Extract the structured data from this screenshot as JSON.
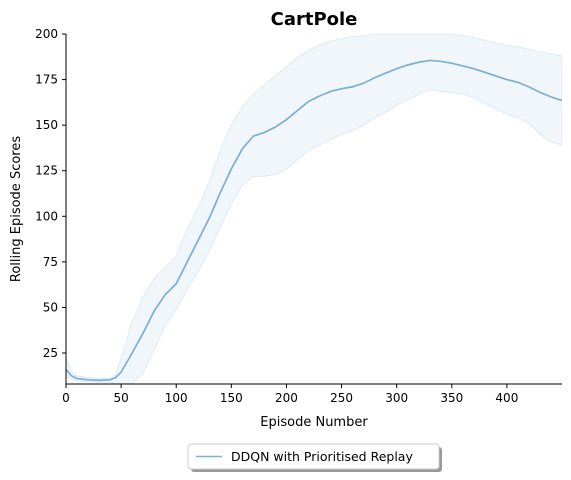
{
  "chart_data": {
    "type": "line",
    "title": "CartPole",
    "xlabel": "Episode Number",
    "ylabel": "Rolling Episode Scores",
    "xlim": [
      0,
      450
    ],
    "ylim": [
      8,
      200
    ],
    "xticks": [
      0,
      50,
      100,
      150,
      200,
      250,
      300,
      350,
      400
    ],
    "yticks": [
      25,
      50,
      75,
      100,
      125,
      150,
      175,
      200
    ],
    "grid": false,
    "legend_position": "bottom-center (below axes)",
    "series": [
      {
        "name": "DDQN with Prioritised Replay",
        "color": "#7bafd4",
        "band_color": "#ddeaf5",
        "x": [
          0,
          5,
          10,
          20,
          30,
          40,
          45,
          50,
          60,
          70,
          80,
          90,
          100,
          110,
          120,
          130,
          140,
          150,
          160,
          170,
          180,
          190,
          200,
          210,
          220,
          230,
          240,
          250,
          260,
          270,
          280,
          290,
          300,
          310,
          320,
          330,
          340,
          350,
          360,
          370,
          380,
          390,
          400,
          410,
          420,
          430,
          440,
          450
        ],
        "mean": [
          16,
          12.5,
          11,
          10.3,
          10,
          10.3,
          11.5,
          14.5,
          25,
          36,
          48,
          57,
          63,
          75,
          87,
          99,
          113,
          126,
          137,
          144,
          146,
          149,
          153,
          158,
          163,
          166,
          168.5,
          170,
          171,
          173,
          176,
          178.5,
          181,
          183,
          184.5,
          185.5,
          185,
          184,
          182.5,
          181,
          179,
          177,
          175,
          173.5,
          171,
          168,
          165.5,
          163.5
        ],
        "upper": [
          22,
          15,
          12.5,
          11.5,
          11,
          11,
          13,
          22,
          42,
          56,
          66,
          72,
          78,
          93,
          105,
          119,
          136,
          150,
          160,
          167,
          172,
          177,
          182,
          187,
          191,
          194,
          196,
          197.5,
          198.5,
          199,
          200,
          200,
          200,
          200,
          200,
          200,
          200,
          200,
          199,
          198,
          196.5,
          195,
          194,
          193,
          191.5,
          190,
          189,
          188
        ],
        "lower": [
          12,
          10.5,
          9.8,
          9.3,
          9,
          9,
          8,
          7,
          7,
          14,
          27,
          40,
          49,
          60,
          70,
          81,
          94,
          107,
          117,
          122,
          122,
          123,
          126,
          131,
          136,
          139,
          142,
          145,
          147,
          150,
          154,
          157,
          161,
          164,
          167,
          169.5,
          168.5,
          168,
          167,
          165,
          162,
          159,
          156,
          154,
          151,
          145,
          141,
          139
        ]
      }
    ]
  }
}
